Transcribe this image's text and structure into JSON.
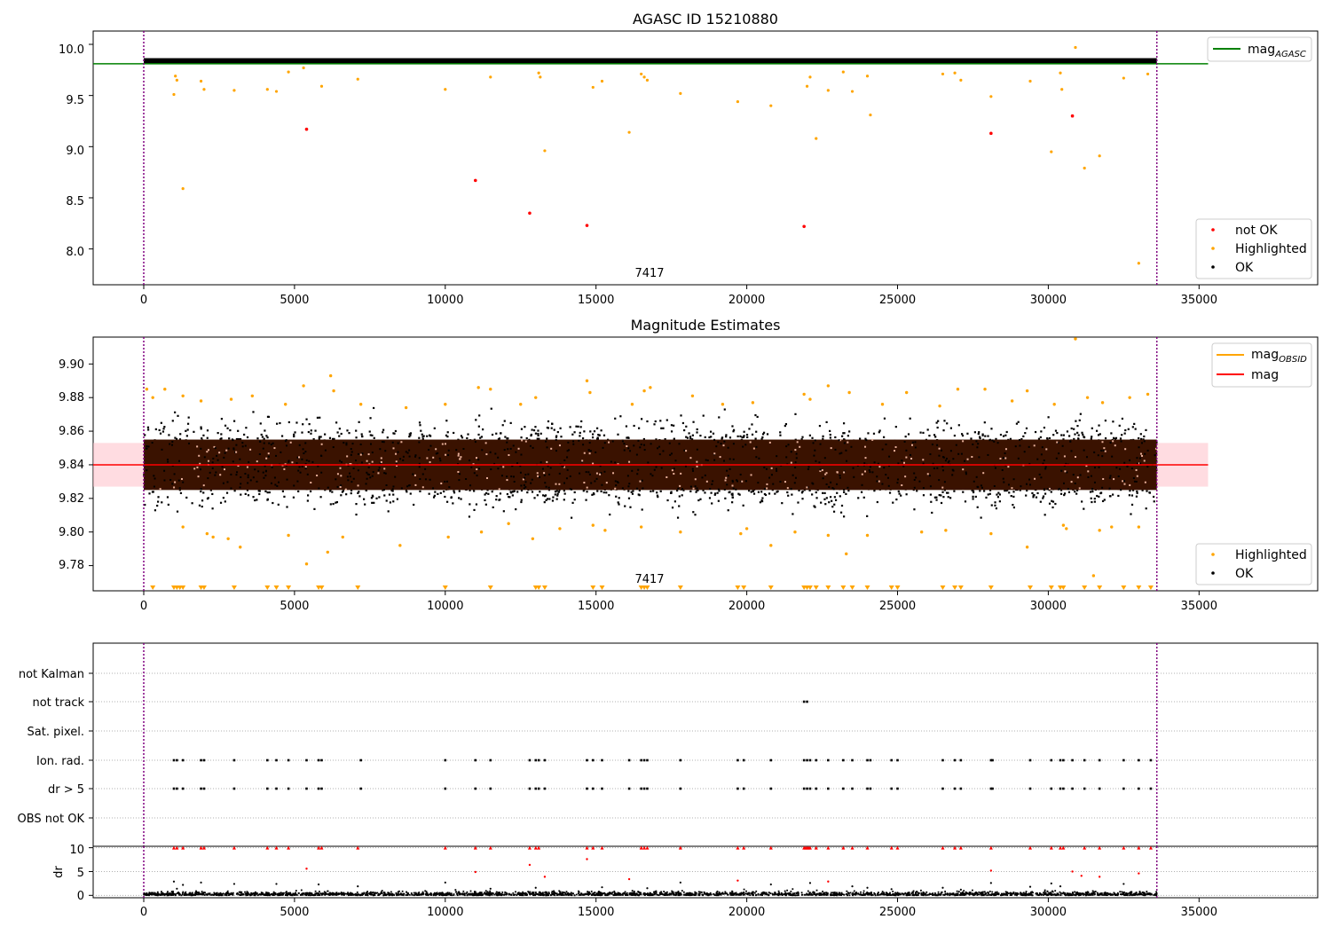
{
  "figure": {
    "background": "#ffffff",
    "colors": {
      "ok": "#000000",
      "highlighted": "#ffa500",
      "not_ok": "#ff0000",
      "mag_agasc_line": "#008000",
      "mag_obsid_line": "#ffa500",
      "mag_line": "#ff0000",
      "mag_band": "#ffc0c8",
      "obsid_marker": "#800080",
      "band_fill": "#3a1200"
    }
  },
  "chart_data": [
    {
      "id": "agasc",
      "type": "scatter",
      "title": "AGASC ID 15210880",
      "xlabel": "",
      "ylabel": "",
      "xlim": [
        -1700,
        39000
      ],
      "ylim": [
        7.65,
        10.13
      ],
      "xticks": [
        "0",
        "5000",
        "10000",
        "15000",
        "20000",
        "25000",
        "30000",
        "35000"
      ],
      "yticks": [
        "10.0",
        "9.5",
        "9.0",
        "8.5",
        "8.0"
      ],
      "obsid_label": "7417",
      "obsid_lines": [
        0,
        33600
      ],
      "dense_band": {
        "x": [
          0,
          33600
        ],
        "y": [
          9.81,
          9.865
        ],
        "label": "OK"
      },
      "reference_line": {
        "name": "mag_AGASC",
        "y": 9.81,
        "x": [
          -1700,
          35300
        ]
      },
      "legend_lines": [
        {
          "label": "mag",
          "subscript": "AGASC",
          "color": "#008000"
        }
      ],
      "legend_points": [
        {
          "label": "not OK",
          "color": "#ff0000"
        },
        {
          "label": "Highlighted",
          "color": "#ffa500"
        },
        {
          "label": "OK",
          "color": "#000000"
        }
      ],
      "series": [
        {
          "name": "not OK",
          "color": "#ff0000",
          "points": [
            [
              5400,
              9.17
            ],
            [
              11000,
              8.67
            ],
            [
              12800,
              8.35
            ],
            [
              14700,
              8.23
            ],
            [
              21900,
              8.22
            ],
            [
              28100,
              9.13
            ],
            [
              30800,
              9.3
            ]
          ]
        },
        {
          "name": "Highlighted",
          "color": "#ffa500",
          "points": [
            [
              1000,
              9.51
            ],
            [
              1050,
              9.69
            ],
            [
              1100,
              9.65
            ],
            [
              1300,
              8.59
            ],
            [
              1900,
              9.64
            ],
            [
              2000,
              9.56
            ],
            [
              3000,
              9.55
            ],
            [
              4100,
              9.56
            ],
            [
              4400,
              9.54
            ],
            [
              4800,
              9.73
            ],
            [
              5300,
              9.77
            ],
            [
              5900,
              9.59
            ],
            [
              7100,
              9.66
            ],
            [
              10000,
              9.56
            ],
            [
              11500,
              9.68
            ],
            [
              13100,
              9.72
            ],
            [
              13150,
              9.68
            ],
            [
              13300,
              8.96
            ],
            [
              14900,
              9.58
            ],
            [
              15200,
              9.64
            ],
            [
              16100,
              9.14
            ],
            [
              16500,
              9.71
            ],
            [
              16600,
              9.68
            ],
            [
              16700,
              9.65
            ],
            [
              17800,
              9.52
            ],
            [
              19700,
              9.44
            ],
            [
              20800,
              9.4
            ],
            [
              22000,
              9.59
            ],
            [
              22100,
              9.68
            ],
            [
              22300,
              9.08
            ],
            [
              22700,
              9.55
            ],
            [
              23200,
              9.73
            ],
            [
              23500,
              9.54
            ],
            [
              24000,
              9.69
            ],
            [
              24100,
              9.31
            ],
            [
              26500,
              9.71
            ],
            [
              26900,
              9.72
            ],
            [
              27100,
              9.65
            ],
            [
              28100,
              9.49
            ],
            [
              29400,
              9.64
            ],
            [
              30100,
              8.95
            ],
            [
              30400,
              9.72
            ],
            [
              30450,
              9.56
            ],
            [
              30900,
              9.97
            ],
            [
              31200,
              8.79
            ],
            [
              31700,
              8.91
            ],
            [
              32500,
              9.67
            ],
            [
              33000,
              7.86
            ],
            [
              33300,
              9.71
            ]
          ]
        }
      ]
    },
    {
      "id": "estimates",
      "type": "scatter",
      "title": "Magnitude Estimates",
      "xlabel": "",
      "ylabel": "",
      "xlim": [
        -1700,
        39000
      ],
      "ylim": [
        9.765,
        9.916
      ],
      "xticks": [
        "0",
        "5000",
        "10000",
        "15000",
        "20000",
        "25000",
        "30000",
        "35000"
      ],
      "yticks": [
        "9.90",
        "9.88",
        "9.86",
        "9.84",
        "9.82",
        "9.80",
        "9.78"
      ],
      "obsid_label": "7417",
      "obsid_lines": [
        0,
        33600
      ],
      "mag_line": {
        "name": "mag",
        "y": 9.84,
        "x": [
          -1700,
          35300
        ]
      },
      "mag_band": {
        "y": [
          9.827,
          9.853
        ],
        "x": [
          -1700,
          35300
        ]
      },
      "mag_obsid_segment": {
        "name": "mag_OBSID",
        "y": 9.84,
        "x": [
          0,
          33600
        ]
      },
      "dense_core": {
        "x": [
          0,
          33600
        ],
        "y": [
          9.825,
          9.855
        ]
      },
      "ok_spread": {
        "x": [
          0,
          33600
        ],
        "y": [
          9.808,
          9.874
        ]
      },
      "legend_lines": [
        {
          "label": "mag",
          "subscript": "OBSID",
          "color": "#ffa500"
        },
        {
          "label": "mag",
          "subscript": "",
          "color": "#ff0000"
        }
      ],
      "legend_points": [
        {
          "label": "Highlighted",
          "color": "#ffa500"
        },
        {
          "label": "OK",
          "color": "#000000"
        }
      ],
      "highlighted_upper": [
        [
          100,
          9.885
        ],
        [
          300,
          9.88
        ],
        [
          700,
          9.885
        ],
        [
          1300,
          9.881
        ],
        [
          1900,
          9.878
        ],
        [
          2900,
          9.879
        ],
        [
          3600,
          9.881
        ],
        [
          4700,
          9.876
        ],
        [
          5300,
          9.887
        ],
        [
          6200,
          9.893
        ],
        [
          6300,
          9.884
        ],
        [
          7200,
          9.876
        ],
        [
          8700,
          9.874
        ],
        [
          10000,
          9.876
        ],
        [
          11100,
          9.886
        ],
        [
          11500,
          9.885
        ],
        [
          12500,
          9.876
        ],
        [
          13000,
          9.88
        ],
        [
          14700,
          9.89
        ],
        [
          14800,
          9.883
        ],
        [
          16200,
          9.876
        ],
        [
          16600,
          9.884
        ],
        [
          16800,
          9.886
        ],
        [
          18200,
          9.881
        ],
        [
          19200,
          9.876
        ],
        [
          20200,
          9.877
        ],
        [
          21900,
          9.882
        ],
        [
          22100,
          9.879
        ],
        [
          22700,
          9.887
        ],
        [
          23400,
          9.883
        ],
        [
          24500,
          9.876
        ],
        [
          25300,
          9.883
        ],
        [
          26400,
          9.875
        ],
        [
          27000,
          9.885
        ],
        [
          27900,
          9.885
        ],
        [
          28800,
          9.878
        ],
        [
          29300,
          9.884
        ],
        [
          30200,
          9.876
        ],
        [
          30900,
          9.915
        ],
        [
          31300,
          9.88
        ],
        [
          31800,
          9.877
        ],
        [
          32700,
          9.88
        ],
        [
          33300,
          9.882
        ]
      ],
      "highlighted_lower": [
        [
          1300,
          9.803
        ],
        [
          2100,
          9.799
        ],
        [
          2300,
          9.797
        ],
        [
          2800,
          9.796
        ],
        [
          3200,
          9.791
        ],
        [
          4800,
          9.798
        ],
        [
          5400,
          9.781
        ],
        [
          6100,
          9.788
        ],
        [
          6600,
          9.797
        ],
        [
          8500,
          9.792
        ],
        [
          10100,
          9.797
        ],
        [
          11200,
          9.8
        ],
        [
          12100,
          9.805
        ],
        [
          12900,
          9.796
        ],
        [
          13800,
          9.802
        ],
        [
          14900,
          9.804
        ],
        [
          15300,
          9.801
        ],
        [
          16500,
          9.803
        ],
        [
          17800,
          9.8
        ],
        [
          19800,
          9.799
        ],
        [
          20000,
          9.802
        ],
        [
          20800,
          9.792
        ],
        [
          21600,
          9.8
        ],
        [
          22700,
          9.798
        ],
        [
          23300,
          9.787
        ],
        [
          24000,
          9.798
        ],
        [
          25800,
          9.8
        ],
        [
          26600,
          9.801
        ],
        [
          28100,
          9.799
        ],
        [
          29300,
          9.791
        ],
        [
          30500,
          9.804
        ],
        [
          30600,
          9.802
        ],
        [
          31500,
          9.774
        ],
        [
          31700,
          9.801
        ],
        [
          32100,
          9.803
        ],
        [
          33000,
          9.803
        ]
      ],
      "offscale_markers": [
        300,
        1000,
        1100,
        1200,
        1300,
        1900,
        2000,
        3000,
        4100,
        4400,
        4800,
        5800,
        5900,
        7100,
        10000,
        11500,
        13000,
        13100,
        13300,
        14900,
        15200,
        16500,
        16600,
        16700,
        17800,
        19700,
        19900,
        20800,
        21900,
        22000,
        22100,
        22300,
        22700,
        23200,
        23500,
        24000,
        24800,
        25000,
        26500,
        26900,
        27100,
        28100,
        29400,
        30100,
        30400,
        30500,
        31200,
        31700,
        32500,
        33000,
        33400
      ]
    },
    {
      "id": "flags",
      "type": "scatter",
      "title": "",
      "xlabel": "",
      "ylabel": "",
      "xlim": [
        -1700,
        39000
      ],
      "categories": [
        "not Kalman",
        "not track",
        "Sat. pixel.",
        "Ion. rad.",
        "dr > 5",
        "OBS not OK"
      ],
      "obsid_lines": [
        0,
        33600
      ],
      "flag_points": {
        "not Kalman": [],
        "not track": [
          21900,
          22000
        ],
        "Sat. pixel.": [],
        "Ion. rad.": [
          1000,
          1100,
          1300,
          1900,
          2000,
          3000,
          4100,
          4400,
          4800,
          5400,
          5800,
          5900,
          7200,
          10000,
          11000,
          11500,
          12800,
          13000,
          13100,
          13300,
          14700,
          14900,
          15200,
          16100,
          16500,
          16600,
          16700,
          17800,
          19700,
          19900,
          20800,
          21900,
          22000,
          22100,
          22300,
          22700,
          23200,
          23500,
          24000,
          24100,
          24800,
          25000,
          26500,
          26900,
          27100,
          28100,
          28150,
          29400,
          30100,
          30400,
          30500,
          30800,
          31200,
          31700,
          32500,
          33000,
          33400
        ],
        "dr > 5": [
          1000,
          1100,
          1300,
          1900,
          2000,
          3000,
          4100,
          4400,
          4800,
          5400,
          5800,
          5900,
          7200,
          10000,
          11000,
          11500,
          12800,
          13000,
          13100,
          13300,
          14700,
          14900,
          15200,
          16100,
          16500,
          16600,
          16700,
          17800,
          19700,
          19900,
          20800,
          21900,
          22000,
          22100,
          22300,
          22700,
          23200,
          23500,
          24000,
          24100,
          24800,
          25000,
          26500,
          26900,
          27100,
          28100,
          28150,
          29400,
          30100,
          30400,
          30500,
          30800,
          31200,
          31700,
          32500,
          33000,
          33400
        ],
        "OBS not OK": []
      }
    },
    {
      "id": "dr",
      "type": "scatter",
      "title": "",
      "xlabel": "",
      "ylabel": "dr",
      "xlim": [
        -1700,
        39000
      ],
      "ylim": [
        -0.5,
        10.3
      ],
      "xticks": [
        "0",
        "5000",
        "10000",
        "15000",
        "20000",
        "25000",
        "30000",
        "35000"
      ],
      "yticks": [
        "10",
        "5",
        "0"
      ],
      "obsid_lines": [
        0,
        33600
      ],
      "clipped_red_x": [
        1000,
        1100,
        1300,
        1900,
        2000,
        3000,
        4100,
        4400,
        4800,
        5800,
        5900,
        7100,
        10000,
        11000,
        11500,
        12800,
        13000,
        13100,
        14700,
        14900,
        15200,
        16500,
        16600,
        16700,
        17800,
        19700,
        19900,
        20800,
        21900,
        21950,
        22000,
        22050,
        22100,
        22300,
        22700,
        23200,
        23500,
        24000,
        24800,
        25000,
        26500,
        26900,
        27100,
        28100,
        29400,
        30100,
        30400,
        30500,
        31200,
        31700,
        32500,
        33000,
        33400
      ],
      "red_points": [
        [
          5400,
          5.6
        ],
        [
          11000,
          4.9
        ],
        [
          12800,
          6.4
        ],
        [
          13300,
          3.9
        ],
        [
          14700,
          7.6
        ],
        [
          16100,
          3.4
        ],
        [
          19700,
          3.1
        ],
        [
          22700,
          2.9
        ],
        [
          28100,
          5.2
        ],
        [
          30800,
          5.0
        ],
        [
          31100,
          4.1
        ],
        [
          31700,
          3.9
        ],
        [
          33000,
          4.6
        ]
      ],
      "black_points": [
        [
          1000,
          2.9
        ],
        [
          1100,
          1.4
        ],
        [
          1300,
          2.2
        ],
        [
          1900,
          2.7
        ],
        [
          3000,
          2.4
        ],
        [
          4400,
          2.4
        ],
        [
          5800,
          2.3
        ],
        [
          7100,
          1.9
        ],
        [
          10000,
          2.7
        ],
        [
          11500,
          1.4
        ],
        [
          13000,
          1.6
        ],
        [
          15200,
          1.7
        ],
        [
          16700,
          1.5
        ],
        [
          17800,
          2.7
        ],
        [
          20800,
          2.3
        ],
        [
          22100,
          2.6
        ],
        [
          23500,
          1.9
        ],
        [
          24000,
          1.6
        ],
        [
          24800,
          1.3
        ],
        [
          26500,
          1.6
        ],
        [
          27100,
          1.2
        ],
        [
          28100,
          2.6
        ],
        [
          29400,
          1.8
        ],
        [
          30100,
          2.5
        ],
        [
          30400,
          1.9
        ],
        [
          32500,
          2.4
        ]
      ]
    }
  ]
}
